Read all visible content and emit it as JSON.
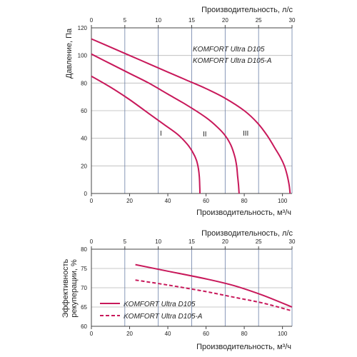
{
  "chart_data": [
    {
      "type": "line",
      "title": "",
      "xlabel": "Производительность, м³/ч",
      "x2label": "Производительность, л/с",
      "ylabel": "Давление, Па",
      "xlim": [
        0,
        105
      ],
      "ylim": [
        0,
        120
      ],
      "x2lim": [
        0,
        30
      ],
      "xticks": [
        "0",
        "20",
        "40",
        "60",
        "80",
        "100"
      ],
      "x2ticks": [
        "0",
        "5",
        "10",
        "15",
        "20",
        "25",
        "30"
      ],
      "yticks": [
        "0",
        "20",
        "40",
        "60",
        "80",
        "100",
        "120"
      ],
      "grid": true,
      "legend": [
        "KOMFORT Ultra D105",
        "KOMFORT Ultra D105-A"
      ],
      "series": [
        {
          "name": "I",
          "color": "#c8185a",
          "points": [
            [
              0,
              85
            ],
            [
              10,
              77
            ],
            [
              20,
              68
            ],
            [
              30,
              58
            ],
            [
              38,
              50
            ],
            [
              45,
              43
            ],
            [
              50,
              36
            ],
            [
              53,
              30
            ],
            [
              55,
              24
            ],
            [
              56,
              18
            ],
            [
              56.5,
              12
            ],
            [
              56.7,
              6
            ],
            [
              56.8,
              0
            ]
          ]
        },
        {
          "name": "II",
          "color": "#c8185a",
          "points": [
            [
              0,
              101
            ],
            [
              10,
              94
            ],
            [
              20,
              87
            ],
            [
              30,
              80
            ],
            [
              40,
              72
            ],
            [
              50,
              64
            ],
            [
              60,
              55
            ],
            [
              66,
              48
            ],
            [
              70,
              42
            ],
            [
              73,
              35
            ],
            [
              75,
              27
            ],
            [
              76,
              20
            ],
            [
              76.5,
              13
            ],
            [
              77,
              6
            ],
            [
              77.3,
              0
            ]
          ]
        },
        {
          "name": "III",
          "color": "#c8185a",
          "points": [
            [
              0,
              112
            ],
            [
              10,
              106
            ],
            [
              20,
              100
            ],
            [
              30,
              94
            ],
            [
              40,
              88
            ],
            [
              50,
              82
            ],
            [
              60,
              76
            ],
            [
              70,
              69
            ],
            [
              80,
              60
            ],
            [
              87,
              51
            ],
            [
              92,
              42
            ],
            [
              96,
              33
            ],
            [
              99,
              26
            ],
            [
              101,
              20
            ],
            [
              102.5,
              13
            ],
            [
              103.5,
              6
            ],
            [
              104,
              0
            ]
          ]
        }
      ],
      "annotations": [
        "I",
        "II",
        "III"
      ]
    },
    {
      "type": "line",
      "title": "",
      "xlabel": "Производительность, м³/ч",
      "x2label": "Производительность, л/с",
      "ylabel": "Эффективность рекуперации, %",
      "xlim": [
        0,
        105
      ],
      "ylim": [
        60,
        80
      ],
      "x2lim": [
        0,
        30
      ],
      "xticks": [
        "0",
        "20",
        "40",
        "60",
        "80",
        "100"
      ],
      "x2ticks": [
        "0",
        "5",
        "10",
        "15",
        "20",
        "25",
        "30"
      ],
      "yticks": [
        "60",
        "65",
        "70",
        "75",
        "80"
      ],
      "grid": true,
      "series": [
        {
          "name": "KOMFORT Ultra D105",
          "color": "#c8185a",
          "style": "solid",
          "points": [
            [
              23,
              76
            ],
            [
              40,
              74.3
            ],
            [
              60,
              72.3
            ],
            [
              75,
              70.5
            ],
            [
              90,
              68
            ],
            [
              105,
              65
            ]
          ]
        },
        {
          "name": "KOMFORT Ultra D105-A",
          "color": "#c8185a",
          "style": "dashed",
          "points": [
            [
              23,
              72
            ],
            [
              40,
              70.7
            ],
            [
              60,
              69
            ],
            [
              75,
              67.5
            ],
            [
              90,
              66
            ],
            [
              105,
              64
            ]
          ]
        }
      ]
    }
  ]
}
